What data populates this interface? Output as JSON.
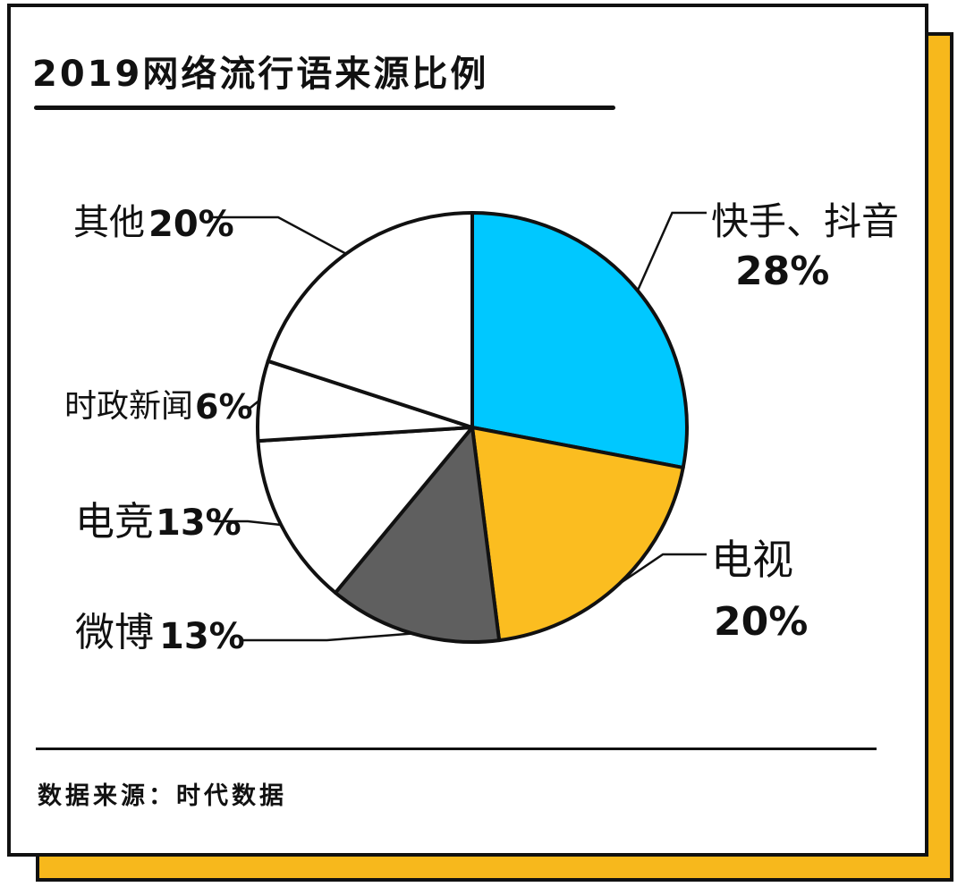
{
  "title": "2019网络流行语来源比例",
  "source": "数据来源：时代数据",
  "colors": {
    "card_border": "#111111",
    "shadow": "#f7b81c",
    "blue": "#00c8ff",
    "yellow": "#fbbd20",
    "dark_gray": "#5f5f5f",
    "white": "#ffffff"
  },
  "chart_data": {
    "type": "pie",
    "slices": [
      {
        "label": "快手、抖音",
        "percent_label": "28%",
        "value": 28,
        "color": "#00c8ff"
      },
      {
        "label": "电视",
        "percent_label": "20%",
        "value": 20,
        "color": "#fbbd20"
      },
      {
        "label": "微博",
        "percent_label": "13%",
        "value": 13,
        "color": "#5f5f5f"
      },
      {
        "label": "电竞",
        "percent_label": "13%",
        "value": 13,
        "color": "#ffffff"
      },
      {
        "label": "时政新闻",
        "percent_label": "6%",
        "value": 6,
        "color": "#ffffff"
      },
      {
        "label": "其他",
        "percent_label": "20%",
        "value": 20,
        "color": "#ffffff"
      }
    ]
  }
}
